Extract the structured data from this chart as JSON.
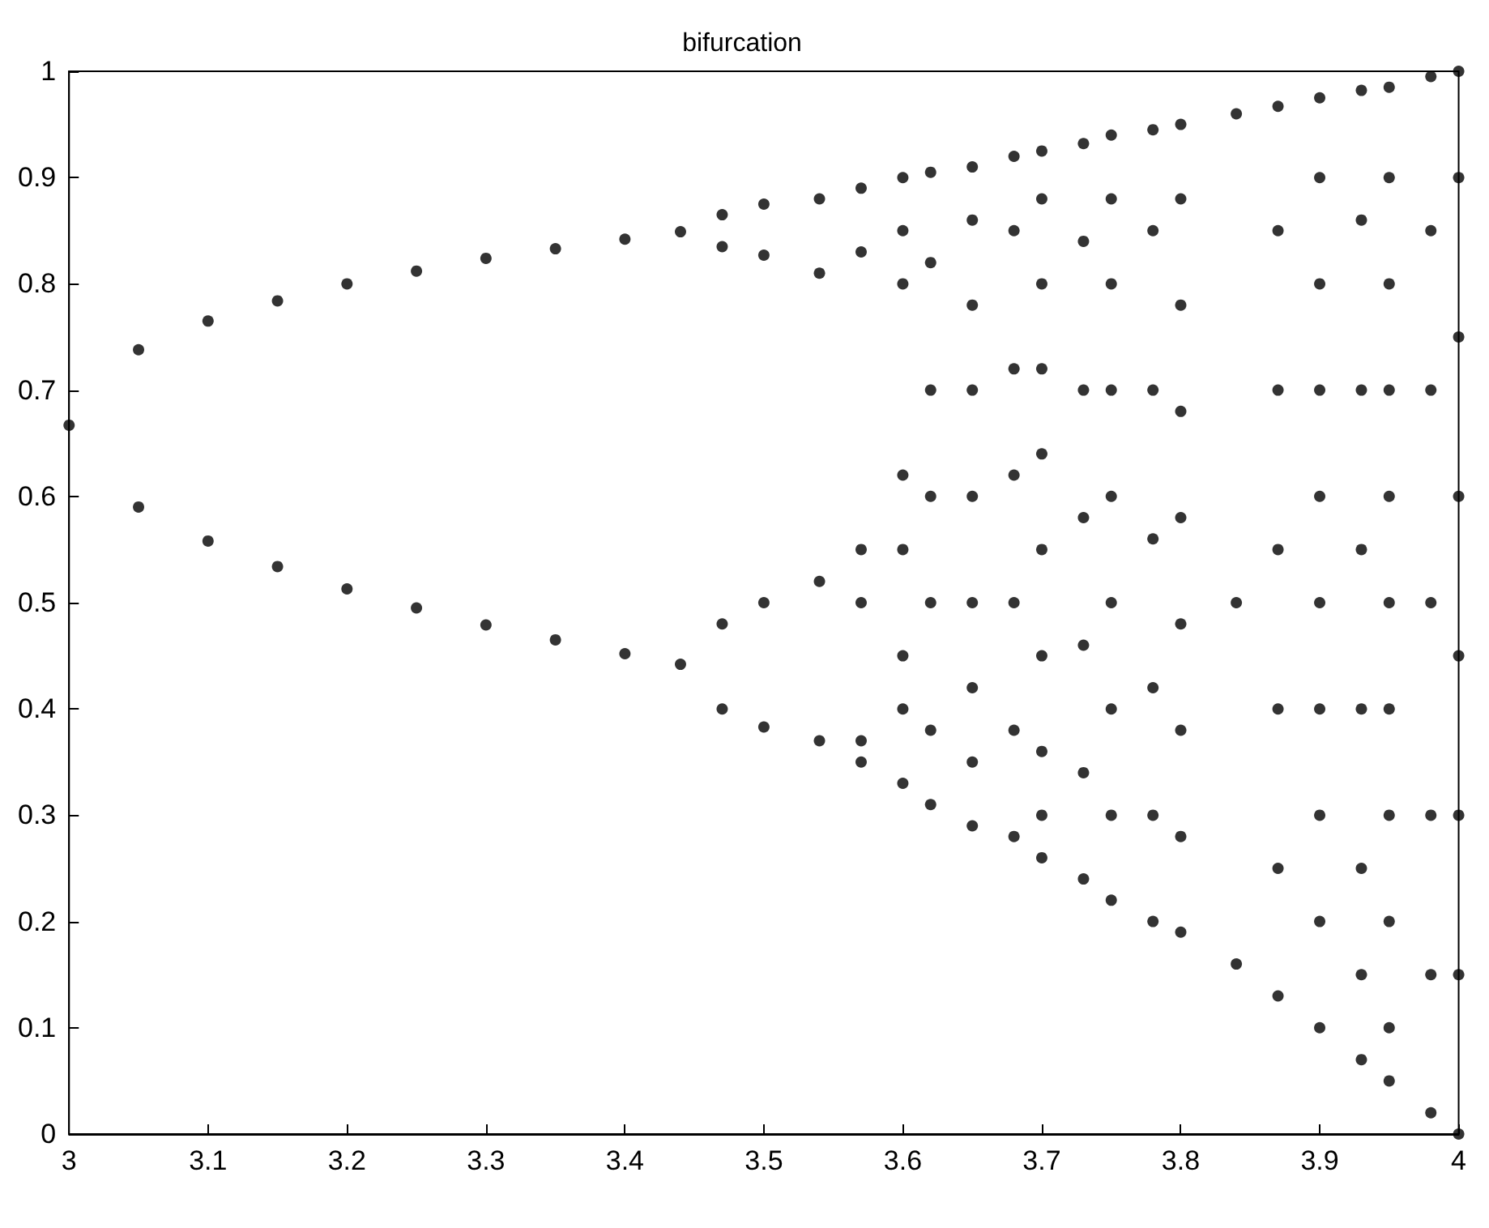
{
  "chart_data": {
    "type": "scatter",
    "title": "bifurcation",
    "marker": "circle",
    "xlim": [
      3,
      4
    ],
    "ylim": [
      0,
      1
    ],
    "xticks": [
      3,
      3.1,
      3.2,
      3.3,
      3.4,
      3.5,
      3.6,
      3.7,
      3.8,
      3.9,
      4
    ],
    "yticks": [
      0,
      0.1,
      0.2,
      0.3,
      0.4,
      0.5,
      0.6,
      0.7,
      0.8,
      0.9,
      1
    ],
    "x": [
      3,
      3.05,
      3.05,
      3.1,
      3.1,
      3.15,
      3.15,
      3.2,
      3.2,
      3.25,
      3.25,
      3.3,
      3.3,
      3.35,
      3.35,
      3.4,
      3.4,
      3.44,
      3.44,
      3.47,
      3.47,
      3.47,
      3.47,
      3.5,
      3.5,
      3.5,
      3.5,
      3.54,
      3.54,
      3.54,
      3.54,
      3.57,
      3.57,
      3.57,
      3.57,
      3.57,
      3.57,
      3.6,
      3.6,
      3.6,
      3.6,
      3.6,
      3.6,
      3.6,
      3.6,
      3.62,
      3.62,
      3.62,
      3.62,
      3.62,
      3.62,
      3.62,
      3.65,
      3.65,
      3.65,
      3.65,
      3.65,
      3.65,
      3.65,
      3.65,
      3.65,
      3.68,
      3.68,
      3.68,
      3.68,
      3.68,
      3.68,
      3.68,
      3.7,
      3.7,
      3.7,
      3.7,
      3.7,
      3.7,
      3.7,
      3.7,
      3.7,
      3.7,
      3.73,
      3.73,
      3.73,
      3.73,
      3.73,
      3.73,
      3.73,
      3.75,
      3.75,
      3.75,
      3.75,
      3.75,
      3.75,
      3.75,
      3.75,
      3.75,
      3.78,
      3.78,
      3.78,
      3.78,
      3.78,
      3.78,
      3.78,
      3.8,
      3.8,
      3.8,
      3.8,
      3.8,
      3.8,
      3.8,
      3.8,
      3.8,
      3.84,
      3.84,
      3.84,
      3.87,
      3.87,
      3.87,
      3.87,
      3.87,
      3.87,
      3.87,
      3.9,
      3.9,
      3.9,
      3.9,
      3.9,
      3.9,
      3.9,
      3.9,
      3.9,
      3.9,
      3.93,
      3.93,
      3.93,
      3.93,
      3.93,
      3.93,
      3.93,
      3.93,
      3.95,
      3.95,
      3.95,
      3.95,
      3.95,
      3.95,
      3.95,
      3.95,
      3.95,
      3.95,
      3.95,
      3.98,
      3.98,
      3.98,
      3.98,
      3.98,
      3.98,
      3.98,
      4,
      4,
      4,
      4,
      4,
      4,
      4,
      4
    ],
    "series": [
      {
        "color": "#000000",
        "values": [
          0.667,
          0.738,
          0.59,
          0.765,
          0.558,
          0.784,
          0.534,
          0.8,
          0.513,
          0.812,
          0.495,
          0.824,
          0.479,
          0.833,
          0.465,
          0.842,
          0.452,
          0.849,
          0.442,
          0.865,
          0.835,
          0.48,
          0.4,
          0.875,
          0.827,
          0.5,
          0.383,
          0.88,
          0.81,
          0.52,
          0.37,
          0.89,
          0.83,
          0.55,
          0.5,
          0.37,
          0.35,
          0.9,
          0.85,
          0.8,
          0.62,
          0.55,
          0.45,
          0.4,
          0.33,
          0.905,
          0.82,
          0.7,
          0.6,
          0.5,
          0.38,
          0.31,
          0.91,
          0.86,
          0.78,
          0.7,
          0.6,
          0.5,
          0.42,
          0.35,
          0.29,
          0.92,
          0.85,
          0.72,
          0.62,
          0.5,
          0.38,
          0.28,
          0.925,
          0.88,
          0.8,
          0.72,
          0.64,
          0.55,
          0.45,
          0.36,
          0.3,
          0.26,
          0.932,
          0.84,
          0.7,
          0.58,
          0.46,
          0.34,
          0.24,
          0.94,
          0.88,
          0.8,
          0.7,
          0.6,
          0.5,
          0.4,
          0.3,
          0.22,
          0.945,
          0.85,
          0.7,
          0.56,
          0.42,
          0.3,
          0.2,
          0.95,
          0.88,
          0.78,
          0.68,
          0.58,
          0.48,
          0.38,
          0.28,
          0.19,
          0.96,
          0.5,
          0.16,
          0.967,
          0.85,
          0.7,
          0.55,
          0.4,
          0.25,
          0.13,
          0.975,
          0.9,
          0.8,
          0.7,
          0.6,
          0.5,
          0.4,
          0.3,
          0.2,
          0.1,
          0.982,
          0.86,
          0.7,
          0.55,
          0.4,
          0.25,
          0.15,
          0.07,
          0.985,
          0.9,
          0.8,
          0.7,
          0.6,
          0.5,
          0.4,
          0.3,
          0.2,
          0.1,
          0.05,
          0.995,
          0.85,
          0.7,
          0.5,
          0.3,
          0.15,
          0.02,
          1,
          0.9,
          0.75,
          0.6,
          0.45,
          0.3,
          0.15,
          0
        ]
      }
    ]
  }
}
